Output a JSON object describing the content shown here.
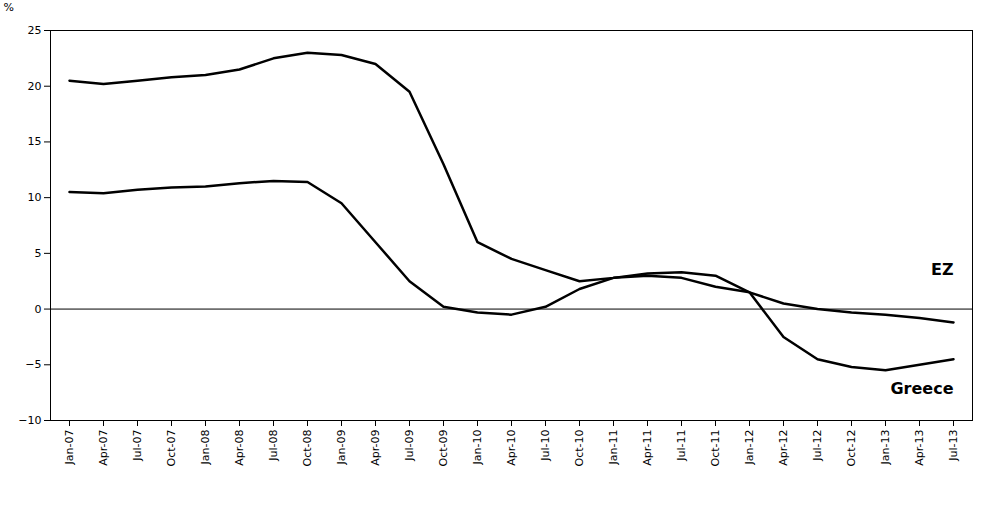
{
  "chart_data": {
    "type": "line",
    "ylabel": "%",
    "categories": [
      "Jan-07",
      "Apr-07",
      "Jul-07",
      "Oct-07",
      "Jan-08",
      "Apr-08",
      "Jul-08",
      "Oct-08",
      "Jan-09",
      "Apr-09",
      "Jul-09",
      "Oct-09",
      "Jan-10",
      "Apr-10",
      "Jul-10",
      "Oct-10",
      "Jan-11",
      "Apr-11",
      "Jul-11",
      "Oct-11",
      "Jan-12",
      "Apr-12",
      "Jul-12",
      "Oct-12",
      "Jan-13",
      "Apr-13",
      "Jul-13"
    ],
    "series": [
      {
        "values": [
          10.5,
          10.4,
          10.7,
          10.9,
          11.0,
          11.3,
          11.5,
          11.4,
          9.5,
          6.0,
          2.5,
          0.2,
          -0.3,
          -0.5,
          0.2,
          1.8,
          2.8,
          3.0,
          2.8,
          2.0,
          1.5,
          0.5,
          0.0,
          -0.3,
          -0.5,
          -0.8,
          -1.2
        ]
      },
      {
        "values": [
          20.5,
          20.2,
          20.5,
          20.8,
          21.0,
          21.5,
          22.5,
          23.0,
          22.8,
          22.0,
          19.5,
          13.0,
          6.0,
          4.5,
          3.5,
          2.5,
          2.8,
          3.2,
          3.3,
          3.0,
          1.5,
          -2.5,
          -4.5,
          -5.2,
          -5.5,
          -5.0,
          -4.5
        ]
      }
    ],
    "ylim": [
      -10,
      25
    ],
    "yticks": [
      -10,
      -5,
      0,
      5,
      10,
      15,
      20,
      25
    ],
    "grid": false,
    "annotations": [
      {
        "text": "EZ",
        "x": "Jul-13",
        "y": 3.5
      },
      {
        "text": "Greece",
        "x": "Jul-13",
        "y": -7.2
      }
    ]
  }
}
